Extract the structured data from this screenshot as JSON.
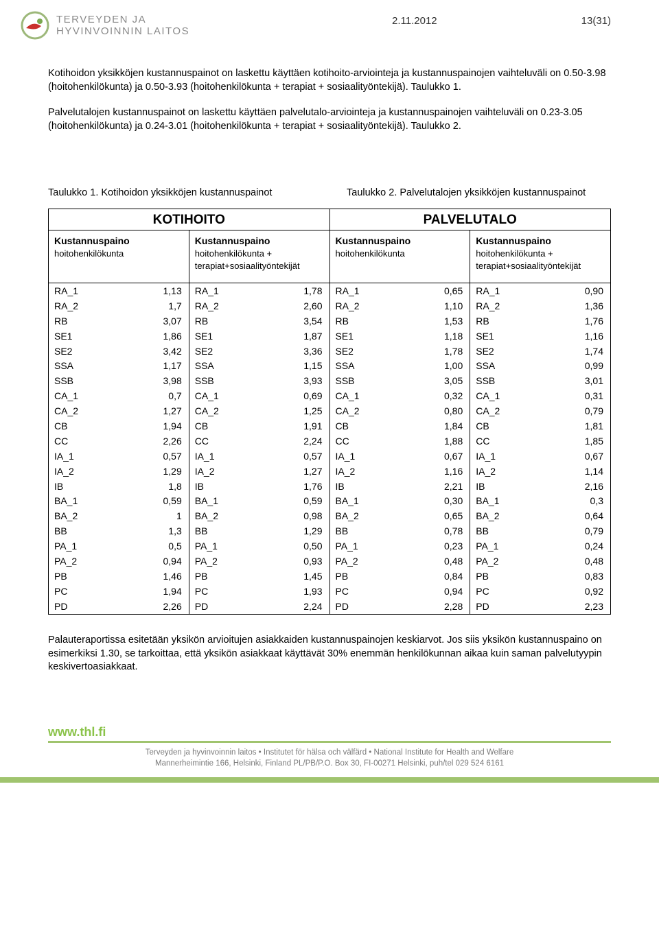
{
  "header": {
    "logo_line1": "TERVEYDEN JA",
    "logo_line2": "HYVINVOINNIN LAITOS",
    "date": "2.11.2012",
    "page": "13(31)"
  },
  "body": {
    "para1": "Kotihoidon yksikköjen kustannuspainot on laskettu käyttäen kotihoito-arviointeja ja kustannuspainojen vaihteluväli on 0.50-3.98 (hoitohenkilökunta) ja 0.50-3.93 (hoitohenkilökunta + terapiat + sosiaalityöntekijä). Taulukko 1.",
    "para2": "Palvelutalojen kustannuspainot on laskettu käyttäen palvelutalo-arviointeja ja kustannuspainojen vaihteluväli on 0.23-3.05 (hoitohenkilökunta) ja 0.24-3.01 (hoitohenkilökunta + terapiat + sosiaalityöntekijä). Taulukko 2.",
    "caption1": "Taulukko 1. Kotihoidon yksikköjen kustannuspainot",
    "caption2": "Taulukko 2. Palvelutalojen yksikköjen kustannuspainot",
    "para3": "Palauteraportissa esitetään yksikön arvioitujen asiakkaiden kustannuspainojen keskiarvot. Jos siis yksikön kustannuspaino on esimerkiksi 1.30, se tarkoittaa, että yksikön asiakkaat käyttävät 30% enemmän henkilökunnan aikaa kuin saman palvelutyypin keskivertoasiakkaat."
  },
  "tables": {
    "left_title": "KOTIHOITO",
    "right_title": "PALVELUTALO",
    "head_bold": "Kustannuspaino",
    "head_a": "hoitohenkilökunta",
    "head_b1": "hoitohenkilökunta +",
    "head_b2": "terapiat+sosiaalityöntekijät",
    "codes": [
      "RA_1",
      "RA_2",
      "RB",
      "SE1",
      "SE2",
      "SSA",
      "SSB",
      "CA_1",
      "CA_2",
      "CB",
      "CC",
      "IA_1",
      "IA_2",
      "IB",
      "BA_1",
      "BA_2",
      "BB",
      "PA_1",
      "PA_2",
      "PB",
      "PC",
      "PD"
    ],
    "kh1": [
      "1,13",
      "1,7",
      "3,07",
      "1,86",
      "3,42",
      "1,17",
      "3,98",
      "0,7",
      "1,27",
      "1,94",
      "2,26",
      "0,57",
      "1,29",
      "1,8",
      "0,59",
      "1",
      "1,3",
      "0,5",
      "0,94",
      "1,46",
      "1,94",
      "2,26"
    ],
    "kh2": [
      "1,78",
      "2,60",
      "3,54",
      "1,87",
      "3,36",
      "1,15",
      "3,93",
      "0,69",
      "1,25",
      "1,91",
      "2,24",
      "0,57",
      "1,27",
      "1,76",
      "0,59",
      "0,98",
      "1,29",
      "0,50",
      "0,93",
      "1,45",
      "1,93",
      "2,24"
    ],
    "pt1": [
      "0,65",
      "1,10",
      "1,53",
      "1,18",
      "1,78",
      "1,00",
      "3,05",
      "0,32",
      "0,80",
      "1,84",
      "1,88",
      "0,67",
      "1,16",
      "2,21",
      "0,30",
      "0,65",
      "0,78",
      "0,23",
      "0,48",
      "0,84",
      "0,94",
      "2,28"
    ],
    "pt2": [
      "0,90",
      "1,36",
      "1,76",
      "1,16",
      "1,74",
      "0,99",
      "3,01",
      "0,31",
      "0,79",
      "1,81",
      "1,85",
      "0,67",
      "1,14",
      "2,16",
      "0,3",
      "0,64",
      "0,79",
      "0,24",
      "0,48",
      "0,83",
      "0,92",
      "2,23"
    ]
  },
  "footer": {
    "brand": "www.thl.fi",
    "line1": "Terveyden ja hyvinvoinnin laitos • Institutet för hälsa och välfärd • National Institute for Health and Welfare",
    "line2": "Mannerheimintie 166, Helsinki, Finland PL/PB/P.O. Box 30, FI-00271 Helsinki, puh/tel 029 524 6161"
  },
  "colors": {
    "border": "#000000",
    "logo_gray": "#8a8a8a",
    "footer_green_text": "#8bc34a",
    "footer_bar": "#a0c46e",
    "footer_text": "#7a7a7a"
  }
}
